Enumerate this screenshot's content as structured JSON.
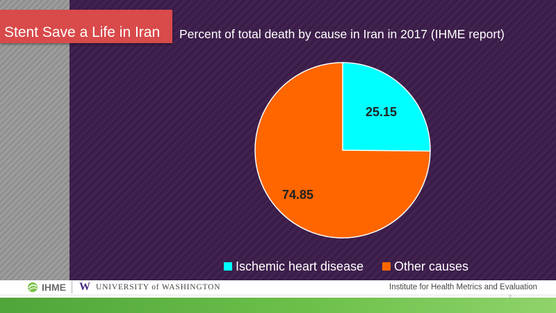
{
  "slide": {
    "title": "Stent Save a Life in Iran",
    "page_number": "2"
  },
  "footer": {
    "ihme_logo_text": "IHME",
    "uw_logo_text": "UNIVERSITY of WASHINGTON",
    "institute_text": "Institute for Health Metrics and Evaluation"
  },
  "colors": {
    "ischemic": "#00ffff",
    "other": "#ff6600",
    "background": "#3a1c49",
    "title_banner": "#d94a4a"
  },
  "icons": {
    "ihme": "globe-leaf-icon",
    "uw": "uw-w-icon"
  },
  "chart_data": {
    "type": "pie",
    "title": "Percent of total death by cause in Iran in 2017 (IHME report)",
    "categories": [
      "Ischemic heart disease",
      "Other causes"
    ],
    "values": [
      25.15,
      74.85
    ],
    "data_labels": [
      "25.15",
      "74.85"
    ],
    "legend_position": "bottom"
  }
}
